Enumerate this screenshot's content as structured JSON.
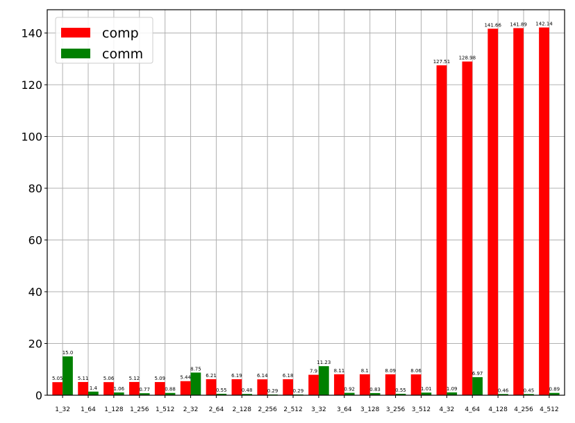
{
  "chart_data": {
    "type": "bar",
    "categories": [
      "1_32",
      "1_64",
      "1_128",
      "1_256",
      "1_512",
      "2_32",
      "2_64",
      "2_128",
      "2_256",
      "2_512",
      "3_32",
      "3_64",
      "3_128",
      "3_256",
      "3_512",
      "4_32",
      "4_64",
      "4_128",
      "4_256",
      "4_512"
    ],
    "series": [
      {
        "name": "comp",
        "color": "#ff0000",
        "values": [
          5.05,
          5.11,
          5.06,
          5.12,
          5.09,
          5.44,
          6.21,
          6.19,
          6.14,
          6.18,
          7.9,
          8.11,
          8.1,
          8.09,
          8.06,
          127.51,
          128.98,
          141.66,
          141.89,
          142.14
        ],
        "labels": [
          "5.05",
          "5.11",
          "5.06",
          "5.12",
          "5.09",
          "5.44",
          "6.21",
          "6.19",
          "6.14",
          "6.18",
          "7.9",
          "8.11",
          "8.1",
          "8.09",
          "8.06",
          "127.51",
          "128.98",
          "141.66",
          "141.89",
          "142.14"
        ]
      },
      {
        "name": "comm",
        "color": "#008000",
        "values": [
          15.0,
          1.4,
          1.06,
          0.77,
          0.88,
          8.75,
          0.55,
          0.48,
          0.29,
          0.29,
          11.23,
          0.92,
          0.83,
          0.55,
          1.01,
          1.09,
          6.97,
          0.46,
          0.45,
          0.89
        ],
        "labels": [
          "15.0",
          "1.4",
          "1.06",
          "0.77",
          "0.88",
          "8.75",
          "0.55",
          "0.48",
          "0.29",
          "0.29",
          "11.23",
          "0.92",
          "0.83",
          "0.55",
          "1.01",
          "1.09",
          "6.97",
          "0.46",
          "0.45",
          "0.89"
        ]
      }
    ],
    "yticks": [
      "0",
      "20",
      "40",
      "60",
      "80",
      "100",
      "120",
      "140"
    ],
    "ylim": [
      0,
      149
    ],
    "grid": true,
    "legend": "upper-left",
    "title": "",
    "xlabel": "",
    "ylabel": ""
  }
}
